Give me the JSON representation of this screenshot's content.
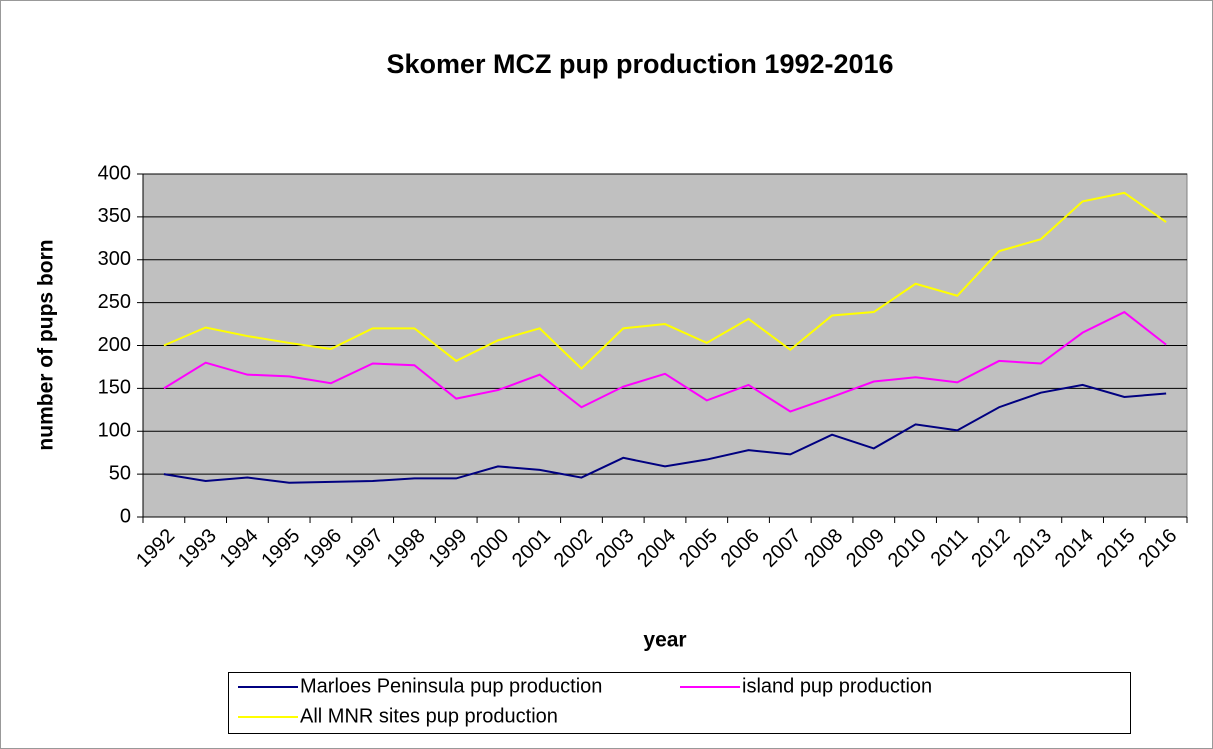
{
  "chart_data": {
    "type": "line",
    "title": "Skomer MCZ pup production 1992-2016",
    "x_label": "year",
    "y_label": "number of pups born",
    "categories": [
      "1992",
      "1993",
      "1994",
      "1995",
      "1996",
      "1997",
      "1998",
      "1999",
      "2000",
      "2001",
      "2002",
      "2003",
      "2004",
      "2005",
      "2006",
      "2007",
      "2008",
      "2009",
      "2010",
      "2011",
      "2012",
      "2013",
      "2014",
      "2015",
      "2016"
    ],
    "series": [
      {
        "name": "Marloes Peninsula pup production",
        "color": "#000080",
        "values": [
          50,
          42,
          46,
          40,
          41,
          42,
          45,
          45,
          59,
          55,
          46,
          69,
          59,
          67,
          78,
          73,
          96,
          80,
          108,
          101,
          128,
          145,
          154,
          140,
          144
        ]
      },
      {
        "name": "island pup production",
        "color": "#ff00ff",
        "values": [
          150,
          180,
          166,
          164,
          156,
          179,
          177,
          138,
          148,
          166,
          128,
          152,
          167,
          136,
          154,
          123,
          140,
          158,
          163,
          157,
          182,
          179,
          215,
          239,
          201
        ]
      },
      {
        "name": "All MNR sites pup production",
        "color": "#ffff00",
        "values": [
          200,
          221,
          211,
          203,
          196,
          220,
          220,
          182,
          206,
          220,
          173,
          220,
          225,
          203,
          231,
          195,
          235,
          239,
          272,
          258,
          310,
          324,
          368,
          378,
          344
        ]
      }
    ],
    "ylim": [
      0,
      400
    ],
    "yticks": [
      0,
      50,
      100,
      150,
      200,
      250,
      300,
      350,
      400
    ],
    "grid": true,
    "plot_background": "#c0c0c0",
    "legend": "bottom"
  }
}
